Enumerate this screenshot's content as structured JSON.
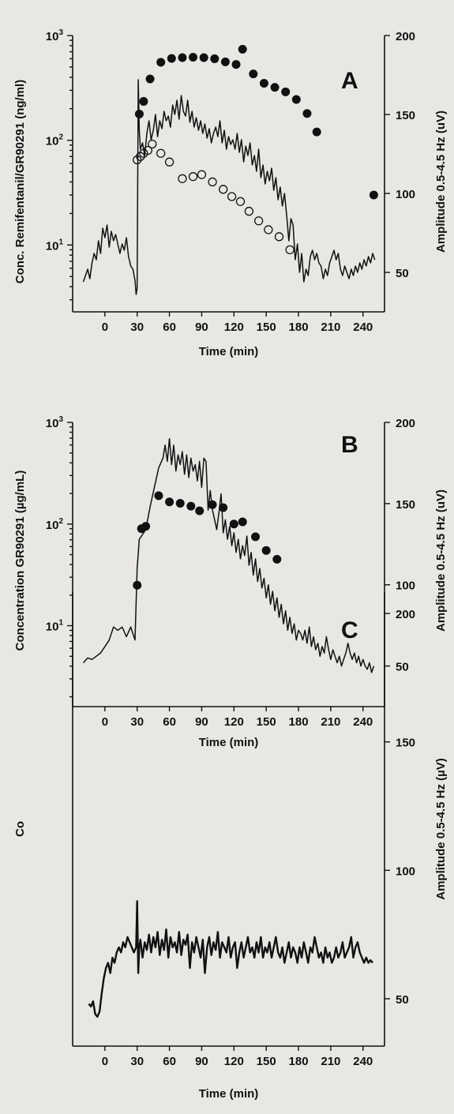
{
  "chart_data": [
    {
      "panel": "A",
      "type": "scatter",
      "xlabel": "Time (min)",
      "ylabel_left": "Conc. Remifentanil/GR90291 (ng/ml)",
      "ylabel_right": "Amplitude 0.5-4.5 Hz (uV)",
      "x_ticks": [
        0,
        30,
        60,
        90,
        120,
        150,
        180,
        210,
        240
      ],
      "xlim": [
        -30,
        260
      ],
      "y_left_scale": "log",
      "y_left_ticks": [
        {
          "value": 10,
          "base": "10",
          "exp": "1"
        },
        {
          "value": 100,
          "base": "10",
          "exp": "2"
        },
        {
          "value": 1000,
          "base": "10",
          "exp": "3"
        }
      ],
      "y_left_lim": [
        2.3,
        1000
      ],
      "y_right_ticks": [
        50,
        100,
        150,
        200
      ],
      "y_right_lim": [
        25,
        200
      ],
      "series": [
        {
          "style": "filled",
          "axis": "left",
          "x": [
            32,
            36,
            42,
            52,
            62,
            72,
            82,
            92,
            102,
            112,
            122,
            128,
            138,
            148,
            158,
            168,
            178,
            188,
            197,
            250
          ],
          "y": [
            178,
            235,
            385,
            555,
            605,
            615,
            620,
            615,
            600,
            560,
            530,
            740,
            430,
            350,
            320,
            290,
            245,
            180,
            120,
            30
          ]
        },
        {
          "style": "open",
          "axis": "left",
          "x": [
            30,
            33,
            36,
            40,
            44,
            52,
            60,
            72,
            82,
            90,
            100,
            110,
            118,
            126,
            134,
            143,
            152,
            162,
            172
          ],
          "y": [
            65,
            70,
            75,
            80,
            92,
            75,
            62,
            43,
            45,
            47,
            40,
            34,
            29,
            26,
            21,
            17,
            14,
            12,
            9
          ]
        },
        {
          "style": "line",
          "axis": "right",
          "x": [
            -20,
            -18,
            -16,
            -14,
            -12,
            -10,
            -8,
            -6,
            -4,
            -2,
            0,
            2,
            4,
            6,
            8,
            10,
            12,
            14,
            16,
            18,
            20,
            22,
            24,
            26,
            28,
            29,
            30,
            31,
            32,
            33,
            35,
            37,
            39,
            41,
            43,
            45,
            47,
            49,
            51,
            53,
            55,
            57,
            59,
            61,
            63,
            65,
            67,
            69,
            71,
            73,
            75,
            77,
            79,
            81,
            83,
            85,
            87,
            89,
            91,
            93,
            95,
            97,
            99,
            101,
            103,
            105,
            107,
            109,
            111,
            113,
            115,
            117,
            119,
            121,
            123,
            125,
            127,
            129,
            131,
            133,
            135,
            137,
            139,
            141,
            143,
            145,
            147,
            149,
            151,
            153,
            155,
            157,
            159,
            161,
            163,
            165,
            167,
            169,
            171,
            173,
            175,
            177,
            179,
            181,
            183,
            185,
            187,
            189,
            191,
            193,
            195,
            197,
            199,
            201,
            203,
            205,
            207,
            209,
            211,
            213,
            215,
            217,
            219,
            221,
            223,
            225,
            227,
            229,
            231,
            233,
            235,
            237,
            239,
            241,
            243,
            245,
            247,
            249,
            251
          ],
          "y": [
            44,
            48,
            52,
            46,
            56,
            62,
            58,
            70,
            62,
            78,
            72,
            80,
            66,
            76,
            70,
            74,
            68,
            62,
            68,
            64,
            72,
            60,
            54,
            52,
            45,
            36,
            40,
            172,
            140,
            128,
            132,
            124,
            138,
            146,
            134,
            140,
            150,
            136,
            146,
            141,
            152,
            146,
            149,
            142,
            156,
            150,
            159,
            147,
            162,
            152,
            149,
            159,
            145,
            152,
            142,
            148,
            140,
            146,
            138,
            144,
            135,
            141,
            132,
            138,
            142,
            136,
            146,
            132,
            140,
            128,
            136,
            131,
            134,
            128,
            138,
            126,
            134,
            120,
            130,
            124,
            132,
            118,
            124,
            114,
            128,
            110,
            118,
            106,
            114,
            108,
            116,
            102,
            110,
            96,
            104,
            92,
            100,
            86,
            70,
            84,
            80,
            58,
            68,
            50,
            62,
            44,
            52,
            48,
            60,
            64,
            58,
            62,
            56,
            54,
            46,
            52,
            48,
            56,
            60,
            64,
            58,
            62,
            52,
            48,
            54,
            50,
            46,
            52,
            48,
            54,
            50,
            56,
            52,
            58,
            54,
            60,
            56,
            62,
            58
          ]
        }
      ]
    },
    {
      "panel": "B",
      "type": "scatter",
      "xlabel": "Time (min)",
      "ylabel_left": "Concentration GR90291 (µg/mL)",
      "ylabel_right": "Amplitude 0.5-4.5 Hz (uV)",
      "x_ticks": [
        0,
        30,
        60,
        90,
        120,
        150,
        180,
        210,
        240
      ],
      "xlim": [
        -30,
        260
      ],
      "y_left_scale": "log",
      "y_left_ticks": [
        {
          "value": 10,
          "base": "10",
          "exp": "1"
        },
        {
          "value": 100,
          "base": "10",
          "exp": "2"
        },
        {
          "value": 1000,
          "base": "10",
          "exp": "3"
        }
      ],
      "y_left_lim": [
        1.6,
        1000
      ],
      "y_right_ticks": [
        50,
        100,
        150,
        200
      ],
      "y_right_lim": [
        25,
        200
      ],
      "series": [
        {
          "style": "filled",
          "axis": "left",
          "x": [
            30,
            34,
            38,
            50,
            60,
            70,
            80,
            88,
            100,
            110,
            120,
            128,
            140,
            150,
            160
          ],
          "y": [
            25,
            90,
            95,
            190,
            165,
            160,
            150,
            135,
            155,
            145,
            100,
            105,
            75,
            55,
            45
          ]
        },
        {
          "style": "line",
          "axis": "right",
          "x": [
            -20,
            -16,
            -12,
            -8,
            -4,
            0,
            4,
            8,
            12,
            16,
            20,
            24,
            28,
            30,
            32,
            34,
            38,
            42,
            46,
            50,
            54,
            56,
            58,
            60,
            62,
            64,
            66,
            68,
            70,
            72,
            74,
            76,
            78,
            80,
            82,
            84,
            86,
            88,
            90,
            92,
            94,
            96,
            98,
            100,
            102,
            104,
            106,
            108,
            110,
            112,
            114,
            116,
            118,
            120,
            122,
            124,
            126,
            128,
            130,
            132,
            134,
            136,
            138,
            140,
            142,
            144,
            146,
            148,
            150,
            152,
            154,
            156,
            158,
            160,
            162,
            164,
            166,
            168,
            170,
            172,
            174,
            176,
            178,
            180,
            182,
            184,
            186,
            188,
            190,
            192,
            194,
            196,
            198,
            200,
            202,
            204,
            206,
            208,
            210,
            212,
            214,
            216,
            218,
            220,
            222,
            224,
            226,
            228,
            230,
            232,
            234,
            236,
            238,
            240,
            242,
            244,
            246,
            248,
            250
          ],
          "y": [
            52,
            55,
            54,
            56,
            58,
            62,
            66,
            74,
            72,
            74,
            68,
            74,
            66,
            110,
            128,
            130,
            134,
            148,
            160,
            172,
            178,
            186,
            176,
            190,
            174,
            186,
            170,
            180,
            174,
            182,
            168,
            180,
            166,
            178,
            170,
            174,
            164,
            176,
            160,
            178,
            176,
            146,
            158,
            146,
            140,
            134,
            144,
            156,
            132,
            140,
            128,
            136,
            124,
            132,
            120,
            128,
            116,
            124,
            118,
            130,
            112,
            120,
            106,
            116,
            102,
            110,
            98,
            104,
            92,
            100,
            88,
            96,
            84,
            92,
            80,
            88,
            76,
            84,
            72,
            80,
            70,
            76,
            66,
            72,
            70,
            66,
            72,
            64,
            74,
            62,
            68,
            60,
            64,
            56,
            62,
            58,
            68,
            60,
            54,
            60,
            56,
            52,
            56,
            50,
            54,
            58,
            64,
            58,
            54,
            58,
            52,
            56,
            50,
            54,
            50,
            48,
            52,
            46,
            50
          ]
        }
      ]
    },
    {
      "panel": "C",
      "type": "line",
      "xlabel": "Time (min)",
      "ylabel_left": "Co",
      "ylabel_right": "Amplitude 0.5-4.5 Hz (µV)",
      "x_ticks": [
        0,
        30,
        60,
        90,
        120,
        150,
        180,
        210,
        240
      ],
      "xlim": [
        -30,
        260
      ],
      "y_right_ticks": [
        50,
        100,
        150,
        200
      ],
      "y_right_lim": [
        30,
        200
      ],
      "series": [
        {
          "style": "line",
          "axis": "right",
          "x": [
            -15,
            -13,
            -11,
            -9,
            -7,
            -5,
            -3,
            -1,
            1,
            3,
            5,
            7,
            9,
            11,
            13,
            15,
            17,
            19,
            21,
            23,
            25,
            27,
            29,
            30,
            31,
            32,
            33,
            35,
            37,
            39,
            41,
            43,
            45,
            47,
            49,
            51,
            53,
            55,
            57,
            59,
            61,
            63,
            65,
            67,
            69,
            71,
            73,
            75,
            77,
            79,
            81,
            83,
            85,
            87,
            89,
            91,
            93,
            95,
            97,
            99,
            101,
            103,
            105,
            107,
            109,
            111,
            113,
            115,
            117,
            119,
            121,
            123,
            125,
            127,
            129,
            131,
            133,
            135,
            137,
            139,
            141,
            143,
            145,
            147,
            149,
            151,
            153,
            155,
            157,
            159,
            161,
            163,
            165,
            167,
            169,
            171,
            173,
            175,
            177,
            179,
            181,
            183,
            185,
            187,
            189,
            191,
            193,
            195,
            197,
            199,
            201,
            203,
            205,
            207,
            209,
            211,
            213,
            215,
            217,
            219,
            221,
            223,
            225,
            227,
            229,
            231,
            233,
            235,
            237,
            239,
            241,
            243,
            245,
            247,
            249
          ],
          "y": [
            48,
            47,
            49,
            44,
            43,
            45,
            52,
            58,
            62,
            64,
            60,
            66,
            64,
            68,
            70,
            68,
            72,
            70,
            74,
            72,
            70,
            68,
            70,
            88,
            60,
            70,
            73,
            66,
            72,
            69,
            75,
            68,
            74,
            70,
            76,
            67,
            73,
            69,
            77,
            66,
            74,
            70,
            72,
            68,
            76,
            67,
            73,
            71,
            75,
            62,
            72,
            68,
            74,
            70,
            66,
            73,
            60,
            70,
            74,
            67,
            72,
            69,
            76,
            66,
            72,
            70,
            68,
            74,
            66,
            70,
            72,
            62,
            68,
            72,
            66,
            70,
            74,
            68,
            70,
            66,
            72,
            68,
            74,
            66,
            70,
            68,
            72,
            66,
            70,
            74,
            68,
            66,
            70,
            64,
            68,
            72,
            66,
            70,
            68,
            64,
            70,
            66,
            72,
            68,
            64,
            70,
            68,
            74,
            70,
            66,
            68,
            64,
            70,
            66,
            68,
            64,
            66,
            70,
            66,
            68,
            72,
            66,
            68,
            70,
            74,
            66,
            70,
            72,
            68,
            66,
            64,
            66,
            64,
            65,
            64
          ]
        }
      ]
    }
  ]
}
